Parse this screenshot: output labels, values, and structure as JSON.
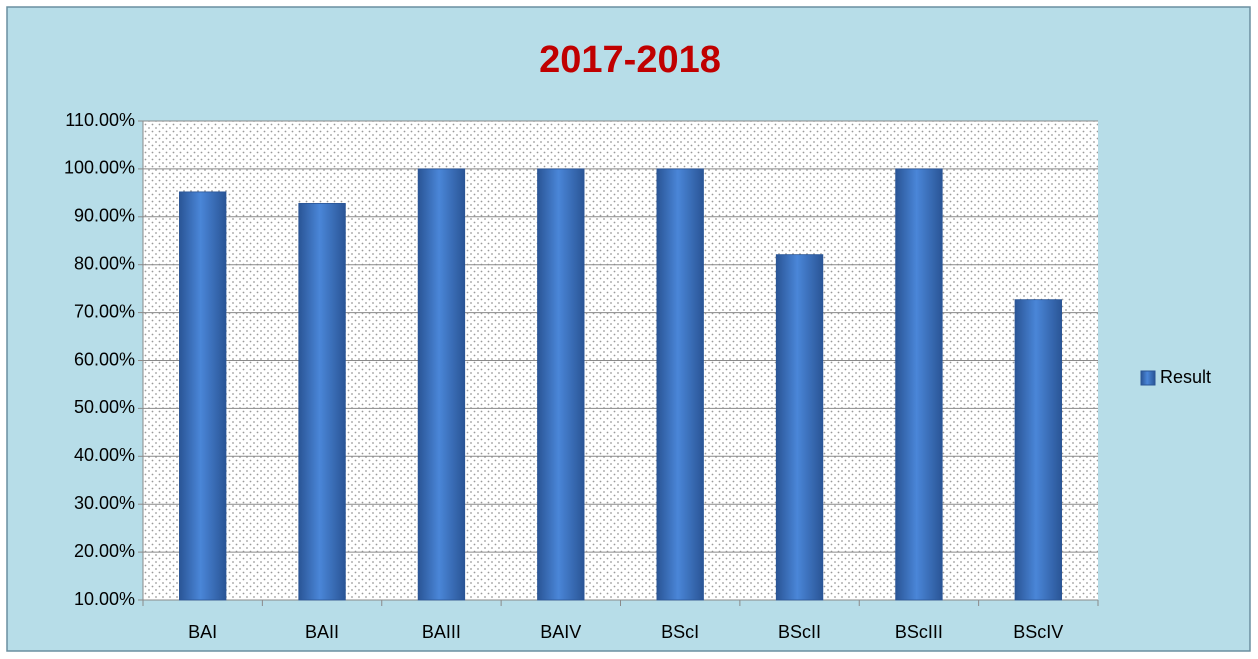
{
  "chart_data": {
    "type": "bar",
    "title": "2017-2018",
    "categories": [
      "BAI",
      "BAII",
      "BAIII",
      "BAIV",
      "BScI",
      "BScII",
      "BScIII",
      "BScIV"
    ],
    "series": [
      {
        "name": "Result",
        "color": "#4a86d8",
        "values": [
          95.2,
          92.8,
          100,
          100,
          100,
          82.1,
          100,
          72.7
        ]
      }
    ],
    "ylim": [
      10,
      110
    ],
    "yticks": [
      {
        "value": 10,
        "label": "10.00%"
      },
      {
        "value": 20,
        "label": "20.00%"
      },
      {
        "value": 30,
        "label": "30.00%"
      },
      {
        "value": 40,
        "label": "40.00%"
      },
      {
        "value": 50,
        "label": "50.00%"
      },
      {
        "value": 60,
        "label": "60.00%"
      },
      {
        "value": 70,
        "label": "70.00%"
      },
      {
        "value": 80,
        "label": "80.00%"
      },
      {
        "value": 90,
        "label": "90.00%"
      },
      {
        "value": 100,
        "label": "100.00%"
      },
      {
        "value": 110,
        "label": "110.00%"
      }
    ],
    "grid": true,
    "legend": "right"
  }
}
